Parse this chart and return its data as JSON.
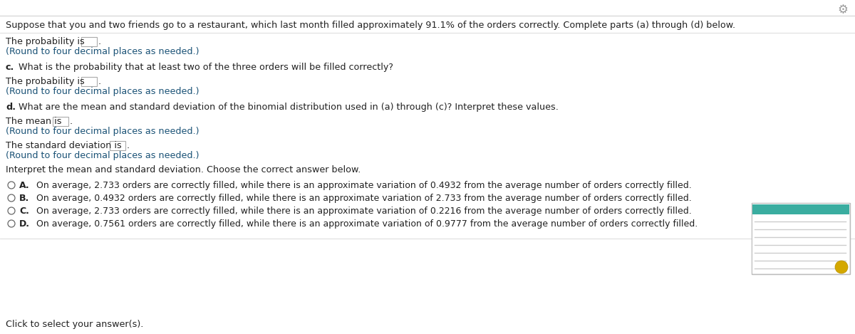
{
  "background_color": "#ffffff",
  "header_text": "Suppose that you and two friends go to a restaurant, which last month filled approximately 91.1% of the orders correctly. Complete parts (a) through (d) below.",
  "section_c_label": "c.",
  "section_c_rest": " What is the probability that at least two of the three orders will be filled correctly?",
  "section_d_label": "d.",
  "section_d_rest": " What are the mean and standard deviation of the binomial distribution used in (a) through (c)? Interpret these values.",
  "line_prob_a": "The probability is",
  "line_round": "(Round to four decimal places as needed.)",
  "line_mean": "The mean is",
  "line_std": "The standard deviation is",
  "interpret_label": "Interpret the mean and standard deviation. Choose the correct answer below.",
  "option_A_label": "A.",
  "option_A_text": "  On average, 2.733 orders are correctly filled, while there is an approximate variation of 0.4932 from the average number of orders correctly filled.",
  "option_B_label": "B.",
  "option_B_text": "  On average, 0.4932 orders are correctly filled, while there is an approximate variation of 2.733 from the average number of orders correctly filled.",
  "option_C_label": "C.",
  "option_C_text": "  On average, 2.733 orders are correctly filled, while there is an approximate variation of 0.2216 from the average number of orders correctly filled.",
  "option_D_label": "D.",
  "option_D_text": "  On average, 0.7561 orders are correctly filled, while there is an approximate variation of 0.9777 from the average number of orders correctly filled.",
  "footer": "Click to select your answer(s).",
  "gear_color": "#999999",
  "divider_color": "#cccccc",
  "blue_text_color": "#1a5276",
  "black_text_color": "#222222",
  "radio_color": "#666666",
  "input_box_color": "#aaaaaa",
  "font_size_header": 9.2,
  "font_size_body": 9.2,
  "font_size_option": 9.0
}
